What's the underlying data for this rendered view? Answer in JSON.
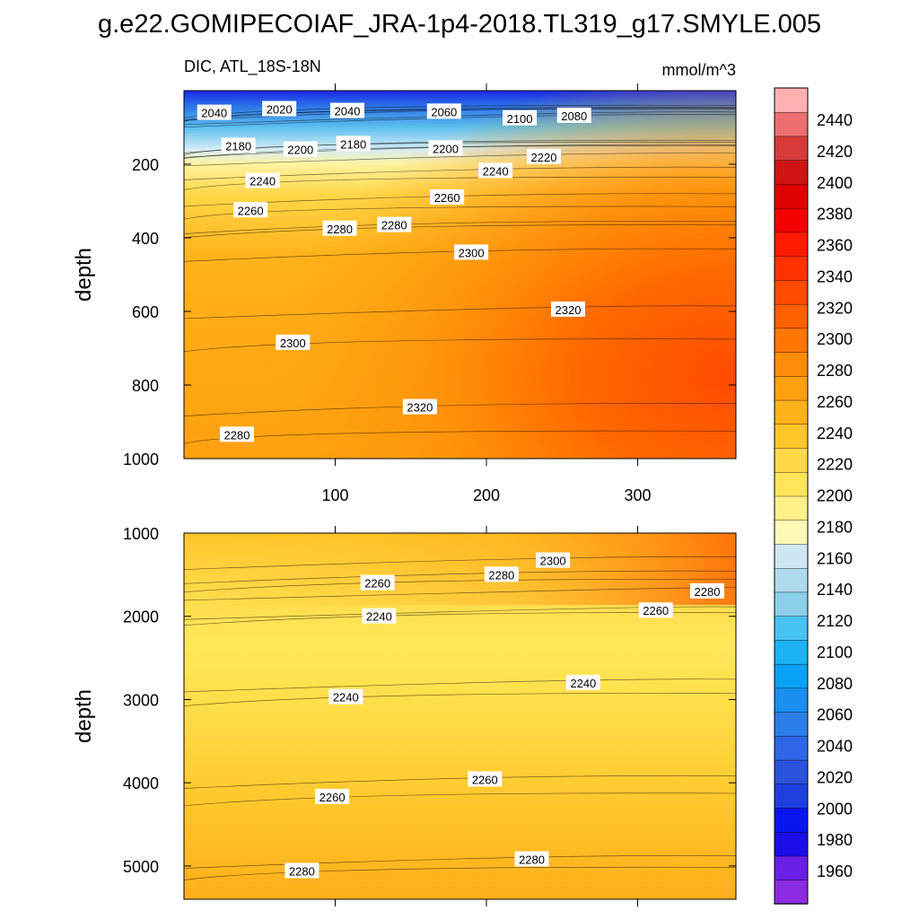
{
  "chart_data": {
    "type": "contour",
    "title": "g.e22.GOMIPECOIAF_JRA-1p4-2018.TL319_g17.SMYLE.005",
    "subtitle_left": "DIC, ATL_18S-18N",
    "units": "mmol/m^3",
    "x_range": [
      0,
      365
    ],
    "x_ticks": [
      100,
      200,
      300
    ],
    "x_tick_labels": [
      "100",
      "200",
      "300"
    ],
    "panels": [
      {
        "name": "upper",
        "ylabel": "depth",
        "y_range": [
          0,
          1000
        ],
        "y_ticks": [
          200,
          400,
          600,
          800,
          1000
        ],
        "y_tick_labels": [
          "200",
          "400",
          "600",
          "800",
          "1000"
        ],
        "contour_labels": [
          {
            "text": "2040",
            "x": 20,
            "y": 60
          },
          {
            "text": "2020",
            "x": 63,
            "y": 50
          },
          {
            "text": "2040",
            "x": 108,
            "y": 55
          },
          {
            "text": "2060",
            "x": 172,
            "y": 57
          },
          {
            "text": "2100",
            "x": 222,
            "y": 75
          },
          {
            "text": "2080",
            "x": 258,
            "y": 68
          },
          {
            "text": "2180",
            "x": 36,
            "y": 150
          },
          {
            "text": "2200",
            "x": 77,
            "y": 160
          },
          {
            "text": "2180",
            "x": 112,
            "y": 145
          },
          {
            "text": "2200",
            "x": 173,
            "y": 157
          },
          {
            "text": "2220",
            "x": 238,
            "y": 180
          },
          {
            "text": "2240",
            "x": 206,
            "y": 218
          },
          {
            "text": "2240",
            "x": 52,
            "y": 245
          },
          {
            "text": "2260",
            "x": 174,
            "y": 290
          },
          {
            "text": "2260",
            "x": 44,
            "y": 325
          },
          {
            "text": "2280",
            "x": 103,
            "y": 375
          },
          {
            "text": "2280",
            "x": 139,
            "y": 365
          },
          {
            "text": "2300",
            "x": 190,
            "y": 440
          },
          {
            "text": "2320",
            "x": 254,
            "y": 595
          },
          {
            "text": "2300",
            "x": 72,
            "y": 685
          },
          {
            "text": "2320",
            "x": 156,
            "y": 860
          },
          {
            "text": "2280",
            "x": 35,
            "y": 935
          }
        ]
      },
      {
        "name": "lower",
        "ylabel": "depth",
        "y_range": [
          1000,
          5400
        ],
        "y_ticks": [
          1000,
          2000,
          3000,
          4000,
          5000
        ],
        "y_tick_labels": [
          "1000",
          "2000",
          "3000",
          "4000",
          "5000"
        ],
        "contour_labels": [
          {
            "text": "2300",
            "x": 244,
            "y": 1330
          },
          {
            "text": "2280",
            "x": 210,
            "y": 1500
          },
          {
            "text": "2260",
            "x": 128,
            "y": 1600
          },
          {
            "text": "2280",
            "x": 346,
            "y": 1700
          },
          {
            "text": "2260",
            "x": 312,
            "y": 1930
          },
          {
            "text": "2240",
            "x": 129,
            "y": 2000
          },
          {
            "text": "2240",
            "x": 264,
            "y": 2800
          },
          {
            "text": "2240",
            "x": 107,
            "y": 2970
          },
          {
            "text": "2260",
            "x": 199,
            "y": 3960
          },
          {
            "text": "2260",
            "x": 98,
            "y": 4170
          },
          {
            "text": "2280",
            "x": 230,
            "y": 4920
          },
          {
            "text": "2280",
            "x": 78,
            "y": 5060
          }
        ]
      }
    ],
    "colorbar": {
      "levels": [
        1940,
        1960,
        1980,
        2000,
        2020,
        2040,
        2060,
        2080,
        2100,
        2120,
        2140,
        2160,
        2180,
        2200,
        2220,
        2240,
        2260,
        2280,
        2300,
        2320,
        2340,
        2360,
        2380,
        2400,
        2420,
        2440,
        2460
      ],
      "labels": [
        "2440",
        "2420",
        "2400",
        "2380",
        "2360",
        "2340",
        "2320",
        "2300",
        "2280",
        "2260",
        "2240",
        "2220",
        "2200",
        "2180",
        "2160",
        "2140",
        "2120",
        "2100",
        "2080",
        "2060",
        "2040",
        "2020",
        "2000",
        "1980",
        "1960"
      ],
      "colors": [
        "#8a2be2",
        "#6a1ee6",
        "#1a0de8",
        "#0a14f0",
        "#1e3ee0",
        "#2a52dc",
        "#2e66e6",
        "#2b7de8",
        "#1a8ff0",
        "#08a2f5",
        "#1ab2f5",
        "#48c2f0",
        "#8ccfe8",
        "#b0daee",
        "#cde7f3",
        "#fff9b8",
        "#fff08a",
        "#ffe55a",
        "#ffd84a",
        "#ffc62a",
        "#ffb21a",
        "#ffa010",
        "#ff8c06",
        "#ff7600",
        "#ff6000",
        "#ff4a00",
        "#ff3200",
        "#ff1a00",
        "#f50000",
        "#e00000",
        "#cf1414",
        "#d83a3a",
        "#ec6e6e",
        "#ffb0b0"
      ]
    }
  }
}
